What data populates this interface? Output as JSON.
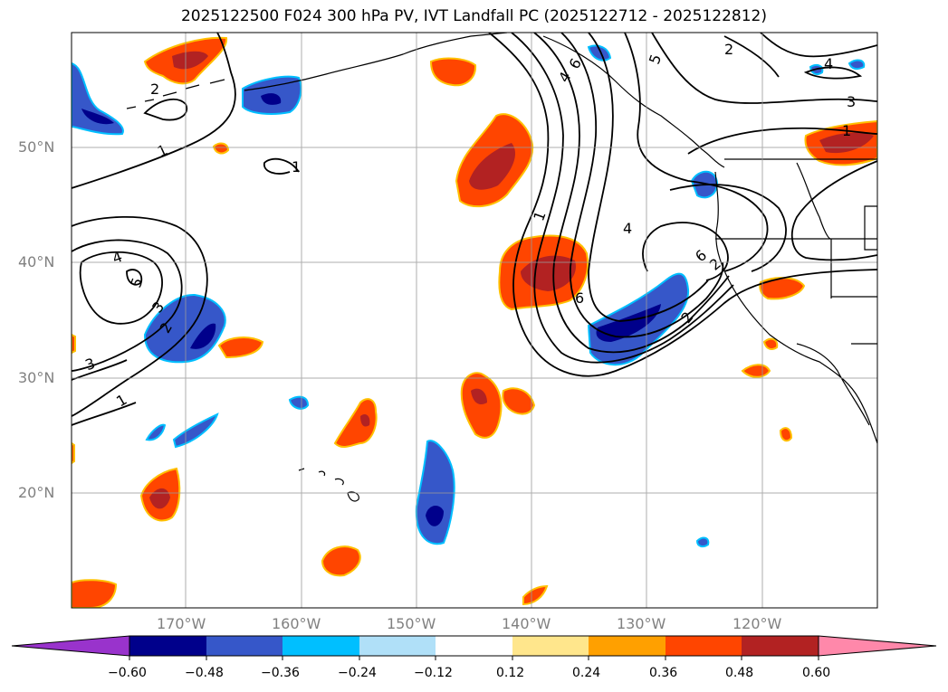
{
  "title": "2025122500 F024 300 hPa PV, IVT Landfall PC (2025122712 - 2025122812)",
  "map": {
    "lat_labels": [
      "50°N",
      "40°N",
      "30°N",
      "20°N"
    ],
    "lon_labels": [
      "170°W",
      "160°W",
      "150°W",
      "140°W",
      "130°W",
      "120°W"
    ],
    "contour_labels": [
      "1",
      "1",
      "1",
      "1",
      "2",
      "2",
      "2",
      "2",
      "3",
      "3",
      "3",
      "4",
      "4",
      "4",
      "5",
      "5",
      "6",
      "6",
      "6",
      "4",
      "1",
      "2"
    ]
  },
  "colorbar": {
    "ticks": [
      "−0.60",
      "−0.48",
      "−0.36",
      "−0.24",
      "−0.12",
      "0.12",
      "0.24",
      "0.36",
      "0.48",
      "0.60"
    ],
    "colors": [
      "#9933cc",
      "#00008b",
      "#3657c9",
      "#00bfff",
      "#b0e0f8",
      "#ffffff",
      "#ffe68c",
      "#ffa000",
      "#ff4500",
      "#b22222",
      "#ff88aa"
    ]
  }
}
